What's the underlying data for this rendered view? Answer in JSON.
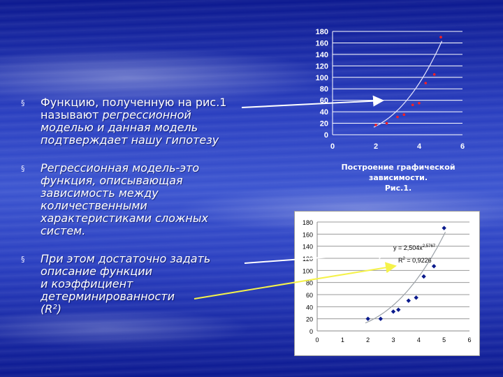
{
  "bullets": [
    {
      "marker": "§",
      "lead": "Функцию, полученную на рис.1\nназывают ",
      "emph": "регрессионной\nмоделью и данная модель\nподтверждает нашу гипотезу"
    },
    {
      "marker": "§",
      "lead": "",
      "emph": "Регрессионная модель-это\nфункция, описывающая\nзависимость между\nколичественными\nхарактеристиками сложных\nсистем."
    },
    {
      "marker": "§",
      "lead": "",
      "emph": "При этом достаточно  задать\nописание функции\n и коэффициент\nдетерминированности\n (R²)"
    }
  ],
  "caption": "Построение графической\nзависимости.\nРис.1.",
  "colors": {
    "curve": "#e8e8ff",
    "point_top": "#ff2020",
    "point_bottom": "#0a1a8c",
    "arrow_white": "#ffffff",
    "arrow_yellow": "#f5f24a"
  },
  "chart_data": [
    {
      "type": "scatter",
      "x_ticks": [
        "0",
        "2",
        "4",
        "6"
      ],
      "y_ticks": [
        "0",
        "20",
        "40",
        "60",
        "80",
        "100",
        "120",
        "140",
        "160",
        "180"
      ],
      "xlim": [
        0,
        6
      ],
      "ylim": [
        0,
        180
      ],
      "grid": true,
      "points": [
        [
          2.0,
          17
        ],
        [
          2.5,
          20
        ],
        [
          3.0,
          31
        ],
        [
          3.3,
          35
        ],
        [
          3.7,
          52
        ],
        [
          4.0,
          55
        ],
        [
          4.3,
          90
        ],
        [
          4.7,
          105
        ],
        [
          5.0,
          170
        ]
      ],
      "trendline": {
        "type": "power",
        "a": 2.504,
        "b": 2.58
      }
    },
    {
      "type": "scatter",
      "x_ticks": [
        "0",
        "1",
        "2",
        "3",
        "4",
        "5",
        "6"
      ],
      "y_ticks": [
        "0",
        "20",
        "40",
        "60",
        "80",
        "100",
        "120",
        "140",
        "160",
        "180"
      ],
      "xlim": [
        0,
        6
      ],
      "ylim": [
        0,
        180
      ],
      "grid": true,
      "points": [
        [
          2.0,
          20
        ],
        [
          2.5,
          20
        ],
        [
          3.0,
          32
        ],
        [
          3.2,
          35
        ],
        [
          3.6,
          50
        ],
        [
          3.9,
          55
        ],
        [
          4.2,
          90
        ],
        [
          4.6,
          107
        ],
        [
          5.0,
          170
        ]
      ],
      "trendline": {
        "type": "power",
        "a": 2.504,
        "b": 2.58
      },
      "equation": "y = 2,504x",
      "exponent": "2,5767",
      "r2_label": "R",
      "r2_sup": "2",
      "r2_value": " = 0,9226"
    }
  ]
}
